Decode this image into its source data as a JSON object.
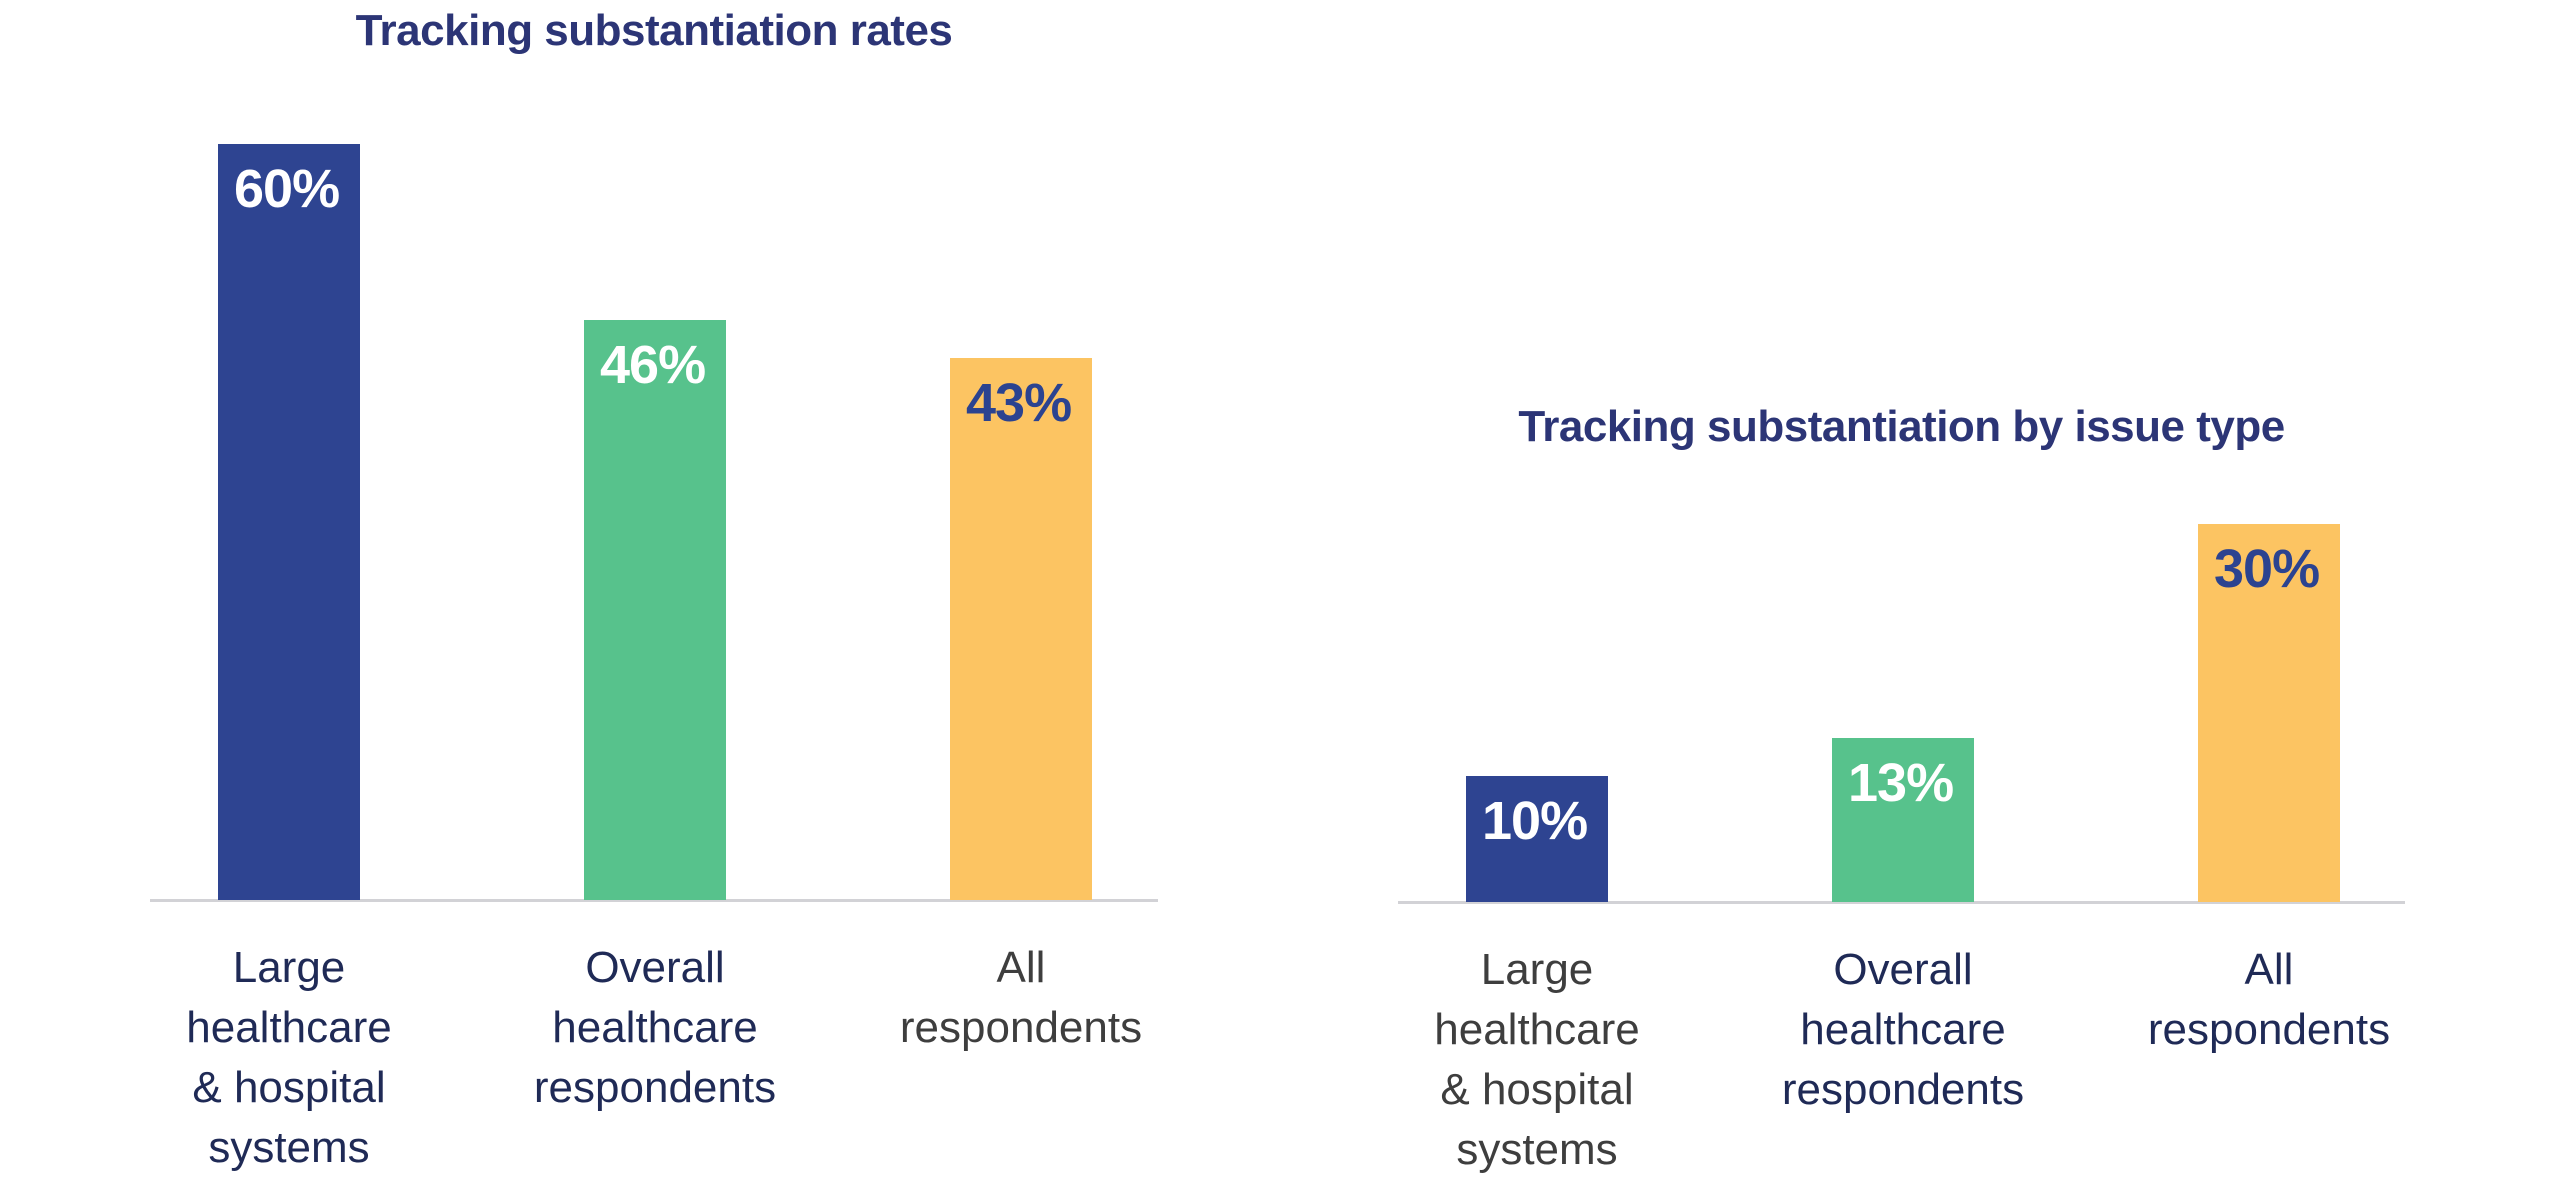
{
  "styles": {
    "background": "#FFFFFF",
    "title_color": "#2C3576",
    "axis_line_color": "#D2D2D6",
    "navy_label_color": "#1F2A56",
    "gray_label_color": "#3E3E3E",
    "bar_blue": "#2E4491",
    "bar_green": "#57C28C",
    "bar_yellow": "#FCC462",
    "value_navy": "#2B4390",
    "value_white": "#FFFFFF"
  },
  "chart_data": [
    {
      "type": "bar",
      "title": "Tracking substantiation rates",
      "categories": [
        "Large healthcare & hospital systems",
        "Overall healthcare respondents",
        "All respondents"
      ],
      "category_lines": [
        [
          "Large",
          "healthcare",
          "& hospital",
          "systems"
        ],
        [
          "Overall",
          "healthcare",
          "respondents"
        ],
        [
          "All",
          "respondents"
        ]
      ],
      "values": [
        60,
        46,
        43
      ],
      "value_labels": [
        "60%",
        "46%",
        "43%"
      ],
      "unit": "%",
      "series_colors": [
        "#2E4491",
        "#57C28C",
        "#FCC462"
      ],
      "value_label_colors": [
        "#FFFFFF",
        "#FFFFFF",
        "#2B4390"
      ],
      "category_label_colors": [
        "#1F2A56",
        "#1F2A56",
        "#3E3E3E"
      ],
      "ylim": [
        0,
        62
      ],
      "grid": false,
      "y_axis_visible": false,
      "value_labels_position": "inside-top",
      "legend": "none"
    },
    {
      "type": "bar",
      "title": "Tracking substantiation by issue type",
      "categories": [
        "Large healthcare & hospital systems",
        "Overall healthcare respondents",
        "All respondents"
      ],
      "category_lines": [
        [
          "Large",
          "healthcare",
          "& hospital",
          "systems"
        ],
        [
          "Overall",
          "healthcare",
          "respondents"
        ],
        [
          "All",
          "respondents"
        ]
      ],
      "values": [
        10,
        13,
        30
      ],
      "value_labels": [
        "10%",
        "13%",
        "30%"
      ],
      "unit": "%",
      "series_colors": [
        "#2E4491",
        "#57C28C",
        "#FCC462"
      ],
      "value_label_colors": [
        "#FFFFFF",
        "#FFFFFF",
        "#2B4390"
      ],
      "category_label_colors": [
        "#3E3E3E",
        "#1F2A56",
        "#1F2A56"
      ],
      "ylim": [
        0,
        62
      ],
      "grid": false,
      "y_axis_visible": false,
      "value_labels_position": "inside-top",
      "legend": "none"
    }
  ]
}
